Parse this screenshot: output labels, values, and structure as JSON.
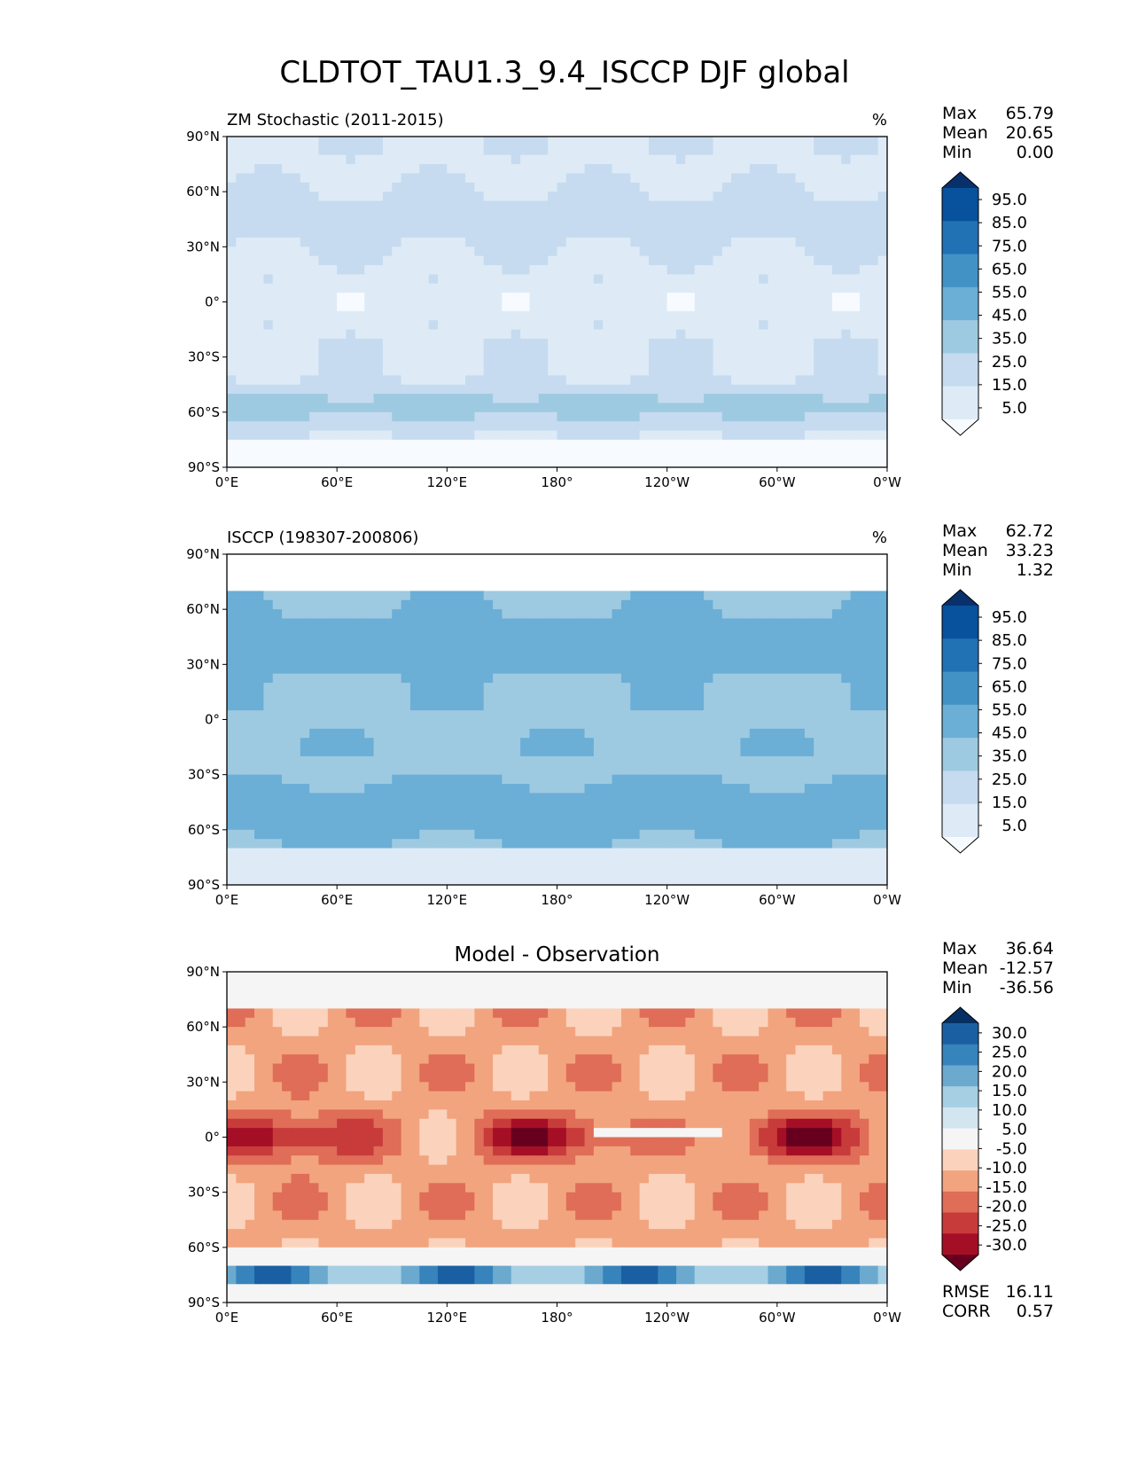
{
  "figure": {
    "title": "CLDTOT_TAU1.3_9.4_ISCCP DJF global"
  },
  "axes": {
    "x_ticks": [
      "0°E",
      "60°E",
      "120°E",
      "180°",
      "120°W",
      "60°W",
      "0°W"
    ],
    "y_ticks": [
      "90°N",
      "60°N",
      "30°N",
      "0°",
      "30°S",
      "60°S",
      "90°S"
    ]
  },
  "chart_data": [
    {
      "type": "heatmap",
      "title": "ZM Stochastic (2011-2015)",
      "units": "%",
      "xlim": [
        0,
        360
      ],
      "ylim": [
        -90,
        90
      ],
      "stats": [
        {
          "label": "Max",
          "value": "65.79"
        },
        {
          "label": "Mean",
          "value": "20.65"
        },
        {
          "label": "Min",
          "value": "0.00"
        }
      ],
      "colorbar": {
        "labels": [
          "95.0",
          "85.0",
          "75.0",
          "65.0",
          "55.0",
          "45.0",
          "35.0",
          "25.0",
          "15.0",
          "5.0"
        ],
        "colors": [
          "#f7fbff",
          "#deebf7",
          "#c6dbef",
          "#9ecae1",
          "#6baed6",
          "#4292c6",
          "#2171b5",
          "#08519c",
          "#08306b"
        ]
      }
    },
    {
      "type": "heatmap",
      "title": "ISCCP (198307-200806)",
      "units": "%",
      "xlim": [
        0,
        360
      ],
      "ylim": [
        -90,
        90
      ],
      "stats": [
        {
          "label": "Max",
          "value": "62.72"
        },
        {
          "label": "Mean",
          "value": "33.23"
        },
        {
          "label": "Min",
          "value": "1.32"
        }
      ],
      "colorbar": {
        "labels": [
          "95.0",
          "85.0",
          "75.0",
          "65.0",
          "55.0",
          "45.0",
          "35.0",
          "25.0",
          "15.0",
          "5.0"
        ],
        "colors": [
          "#f7fbff",
          "#deebf7",
          "#c6dbef",
          "#9ecae1",
          "#6baed6",
          "#4292c6",
          "#2171b5",
          "#08519c",
          "#08306b"
        ]
      }
    },
    {
      "type": "heatmap",
      "title": "Model - Observation",
      "xlim": [
        0,
        360
      ],
      "ylim": [
        -90,
        90
      ],
      "stats": [
        {
          "label": "Max",
          "value": "36.64"
        },
        {
          "label": "Mean",
          "value": "-12.57"
        },
        {
          "label": "Min",
          "value": "-36.56"
        }
      ],
      "extra_stats": [
        {
          "label": "RMSE",
          "value": "16.11"
        },
        {
          "label": "CORR",
          "value": "0.57"
        }
      ],
      "colorbar": {
        "labels": [
          "30.0",
          "25.0",
          "20.0",
          "15.0",
          "10.0",
          "5.0",
          "-5.0",
          "-10.0",
          "-15.0",
          "-20.0",
          "-25.0",
          "-30.0"
        ],
        "colors": [
          "#67001f",
          "#a50f26",
          "#c83b3b",
          "#df6d57",
          "#f2a47e",
          "#fbd3bd",
          "#f5f5f5",
          "#d3e6f0",
          "#a6cfe3",
          "#6ba9cf",
          "#3783bb",
          "#1b5fa3",
          "#053061"
        ]
      }
    }
  ]
}
